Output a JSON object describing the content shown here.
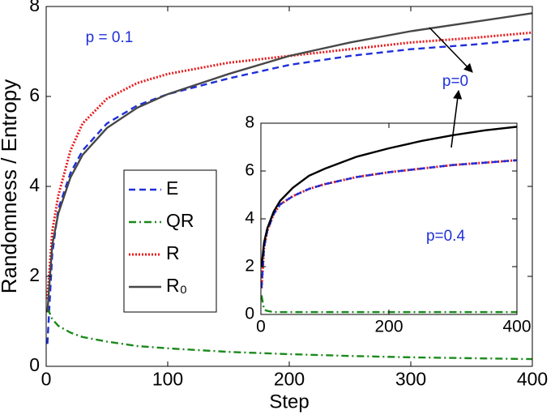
{
  "chart_data": [
    {
      "type": "line",
      "xlabel": "Step",
      "ylabel": "Randomness / Entropy",
      "xlim": [
        0,
        400
      ],
      "ylim": [
        0,
        8
      ],
      "xticks": [
        0,
        100,
        200,
        300,
        400
      ],
      "yticks": [
        0,
        2,
        4,
        6,
        8
      ],
      "annotations": [
        "p = 0.1",
        "p=0"
      ],
      "legend": "center-left",
      "x": [
        1,
        5,
        10,
        20,
        30,
        50,
        75,
        100,
        150,
        200,
        250,
        300,
        350,
        400
      ],
      "series": [
        {
          "name": "E",
          "color": "#1f2fd9",
          "line_style": "dashed",
          "values": [
            0.5,
            2.5,
            3.5,
            4.3,
            4.8,
            5.4,
            5.8,
            6.05,
            6.4,
            6.7,
            6.9,
            7.05,
            7.15,
            7.28
          ]
        },
        {
          "name": "QR",
          "color": "#1a8a1a",
          "line_style": "dashdot",
          "values": [
            1.3,
            1.05,
            0.9,
            0.75,
            0.65,
            0.55,
            0.45,
            0.4,
            0.32,
            0.27,
            0.23,
            0.2,
            0.18,
            0.16
          ]
        },
        {
          "name": "R",
          "color": "#e8191b",
          "line_style": "dotted",
          "values": [
            1.5,
            3.0,
            3.8,
            4.8,
            5.4,
            5.95,
            6.3,
            6.5,
            6.75,
            6.9,
            7.05,
            7.2,
            7.3,
            7.42
          ]
        },
        {
          "name": "R₀",
          "color": "#474747",
          "line_style": "solid",
          "values": [
            1.2,
            2.7,
            3.4,
            4.2,
            4.7,
            5.3,
            5.75,
            6.05,
            6.5,
            6.9,
            7.2,
            7.45,
            7.65,
            7.85
          ]
        }
      ]
    },
    {
      "type": "line",
      "xlim": [
        0,
        400
      ],
      "ylim": [
        0,
        8
      ],
      "xticks": [
        0,
        200,
        400
      ],
      "yticks": [
        0,
        2,
        4,
        6,
        8
      ],
      "annotations": [
        "p=0.4"
      ],
      "x": [
        1,
        5,
        10,
        20,
        30,
        50,
        75,
        100,
        150,
        200,
        250,
        300,
        350,
        400
      ],
      "series": [
        {
          "color": "#e8191b",
          "line_style": "dotted",
          "values": [
            1.1,
            2.8,
            3.5,
            4.2,
            4.6,
            4.95,
            5.25,
            5.45,
            5.75,
            5.95,
            6.1,
            6.25,
            6.35,
            6.45
          ]
        },
        {
          "color": "#1f2fd9",
          "line_style": "dashed",
          "values": [
            1.1,
            2.8,
            3.5,
            4.2,
            4.6,
            4.95,
            5.25,
            5.45,
            5.75,
            5.95,
            6.1,
            6.25,
            6.35,
            6.45
          ]
        },
        {
          "color": "#1a8a1a",
          "line_style": "dashdot",
          "values": [
            0.8,
            0.2,
            0.15,
            0.1,
            0.1,
            0.1,
            0.1,
            0.1,
            0.1,
            0.1,
            0.1,
            0.1,
            0.1,
            0.1
          ]
        },
        {
          "color": "#000000",
          "line_style": "solid",
          "values": [
            2.0,
            3.0,
            3.6,
            4.3,
            4.75,
            5.3,
            5.8,
            6.1,
            6.6,
            6.95,
            7.25,
            7.5,
            7.7,
            7.85
          ]
        }
      ]
    }
  ]
}
